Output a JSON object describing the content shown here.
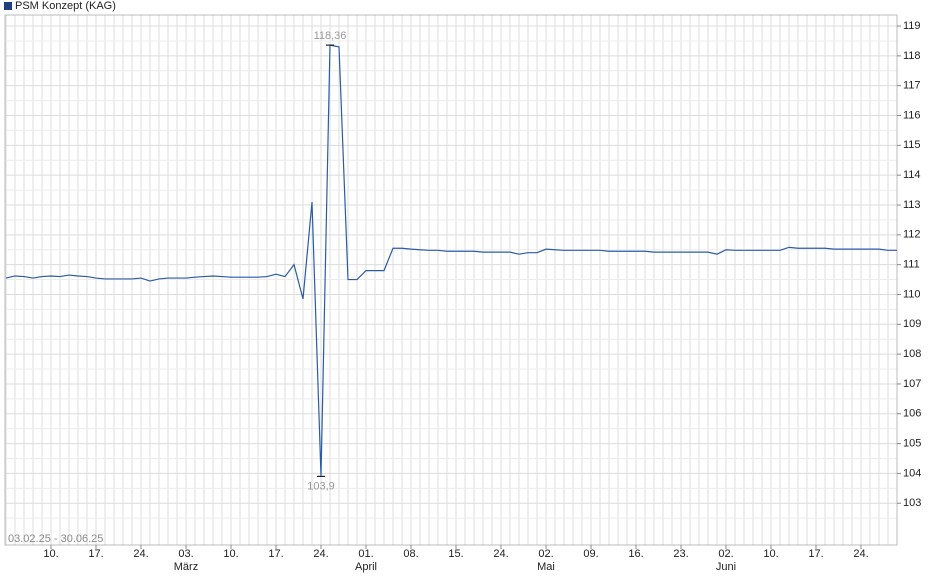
{
  "chart_data": {
    "type": "line",
    "date_range": "03.02.25 - 30.06.25",
    "categories": [
      null,
      null,
      null,
      null,
      null,
      "10.",
      null,
      null,
      null,
      null,
      "17.",
      null,
      null,
      null,
      null,
      "24.",
      null,
      null,
      null,
      null,
      "03.",
      null,
      null,
      null,
      null,
      "10.",
      null,
      null,
      null,
      null,
      "17.",
      null,
      null,
      null,
      null,
      "24.",
      null,
      null,
      null,
      null,
      "01.",
      null,
      null,
      null,
      null,
      "08.",
      null,
      null,
      null,
      null,
      "15.",
      null,
      null,
      null,
      null,
      "24.",
      null,
      null,
      null,
      null,
      "02.",
      null,
      null,
      null,
      null,
      "09.",
      null,
      null,
      null,
      null,
      "16.",
      null,
      null,
      null,
      null,
      "23.",
      null,
      null,
      null,
      null,
      "02.",
      null,
      null,
      null,
      null,
      "10.",
      null,
      null,
      null,
      null,
      "17.",
      null,
      null,
      null,
      null,
      "24.",
      null,
      null,
      null,
      null
    ],
    "month_labels": [
      null,
      null,
      null,
      null,
      null,
      null,
      null,
      null,
      null,
      null,
      null,
      null,
      null,
      null,
      null,
      null,
      null,
      null,
      null,
      null,
      "März",
      null,
      null,
      null,
      null,
      null,
      null,
      null,
      null,
      null,
      null,
      null,
      null,
      null,
      null,
      null,
      null,
      null,
      null,
      null,
      "April",
      null,
      null,
      null,
      null,
      null,
      null,
      null,
      null,
      null,
      null,
      null,
      null,
      null,
      null,
      null,
      null,
      null,
      null,
      null,
      "Mai",
      null,
      null,
      null,
      null,
      null,
      null,
      null,
      null,
      null,
      null,
      null,
      null,
      null,
      null,
      null,
      null,
      null,
      null,
      null,
      "Juni",
      null,
      null,
      null,
      null,
      null,
      null,
      null,
      null,
      null,
      null,
      null,
      null,
      null,
      null,
      null,
      null,
      null,
      null,
      null
    ],
    "series": [
      {
        "name": "PSM Konzept (KAG)",
        "color": "#2b5ba6",
        "values": [
          110.55,
          110.62,
          110.6,
          110.55,
          110.6,
          110.62,
          110.6,
          110.65,
          110.62,
          110.6,
          110.55,
          110.52,
          110.52,
          110.52,
          110.52,
          110.55,
          110.45,
          110.52,
          110.55,
          110.55,
          110.55,
          110.58,
          110.6,
          110.62,
          110.6,
          110.58,
          110.58,
          110.58,
          110.58,
          110.6,
          110.68,
          110.6,
          111.0,
          109.85,
          113.1,
          103.9,
          118.36,
          118.3,
          110.5,
          110.5,
          110.8,
          110.8,
          110.8,
          111.55,
          111.55,
          111.52,
          111.5,
          111.48,
          111.48,
          111.45,
          111.45,
          111.45,
          111.45,
          111.42,
          111.42,
          111.42,
          111.42,
          111.35,
          111.4,
          111.4,
          111.52,
          111.5,
          111.48,
          111.48,
          111.48,
          111.48,
          111.48,
          111.45,
          111.45,
          111.45,
          111.45,
          111.45,
          111.42,
          111.42,
          111.42,
          111.42,
          111.42,
          111.42,
          111.42,
          111.35,
          111.5,
          111.48,
          111.48,
          111.48,
          111.48,
          111.48,
          111.48,
          111.58,
          111.55,
          111.55,
          111.55,
          111.55,
          111.52,
          111.52,
          111.52,
          111.52,
          111.52,
          111.52,
          111.48,
          111.48
        ],
        "value_labels": [
          null,
          null,
          null,
          null,
          null,
          null,
          null,
          null,
          null,
          null,
          null,
          null,
          null,
          null,
          null,
          null,
          null,
          null,
          null,
          null,
          null,
          null,
          null,
          null,
          null,
          null,
          null,
          null,
          null,
          null,
          null,
          null,
          null,
          null,
          null,
          "103,9",
          "118,36",
          null,
          null,
          null,
          null,
          null,
          null,
          null,
          null,
          null,
          null,
          null,
          null,
          null,
          null,
          null,
          null,
          null,
          null,
          null,
          null,
          null,
          null,
          null,
          null,
          null,
          null,
          null,
          null,
          null,
          null,
          null,
          null,
          null,
          null,
          null,
          null,
          null,
          null,
          null,
          null,
          null,
          null,
          null,
          null,
          null,
          null,
          null,
          null,
          null,
          null,
          null,
          null,
          null,
          null,
          null,
          null,
          null,
          null,
          null,
          null,
          null,
          null,
          null
        ]
      }
    ],
    "ylim": [
      101.6,
      119.37
    ],
    "yticks": [
      103,
      104,
      105,
      106,
      107,
      108,
      109,
      110,
      111,
      112,
      113,
      114,
      115,
      116,
      117,
      118,
      119
    ],
    "minor_yticks": [
      102.5,
      103.5,
      104.5,
      105.5,
      106.5,
      107.5,
      108.5,
      109.5,
      110.5,
      111.5,
      112.5,
      113.5,
      114.5,
      115.5,
      116.5,
      117.5,
      118.5
    ],
    "grid": true
  }
}
